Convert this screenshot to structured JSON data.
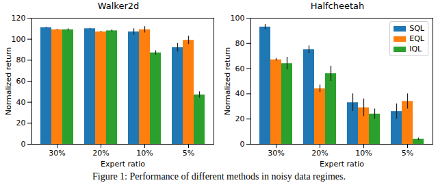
{
  "caption": "Figure 1: Performance of different methods in noisy data regimes.",
  "chart_data": [
    {
      "type": "bar",
      "title": "Walker2d",
      "x_label": "Expert ratio",
      "y_label": "Normalized return",
      "categories": [
        "30%",
        "20%",
        "10%",
        "5%"
      ],
      "series": [
        {
          "name": "SQL",
          "color": "#1f77b4",
          "values": [
            111,
            110,
            107,
            92
          ],
          "errors": [
            0.5,
            0.5,
            3,
            4
          ]
        },
        {
          "name": "EQL",
          "color": "#ff7f0e",
          "values": [
            109,
            107,
            109,
            99
          ],
          "errors": [
            0.5,
            0.5,
            3,
            4
          ]
        },
        {
          "name": "IQL",
          "color": "#2ca02c",
          "values": [
            109,
            108,
            87,
            47
          ],
          "errors": [
            1,
            1,
            2,
            3
          ]
        }
      ],
      "ylim": [
        0,
        120
      ],
      "yticks": [
        0,
        20,
        40,
        60,
        80,
        100,
        120
      ],
      "grid": false
    },
    {
      "type": "bar",
      "title": "Halfcheetah",
      "x_label": "Expert ratio",
      "y_label": "Normalized return",
      "categories": [
        "30%",
        "20%",
        "10%",
        "5%"
      ],
      "series": [
        {
          "name": "SQL",
          "color": "#1f77b4",
          "values": [
            93,
            75,
            33,
            26
          ],
          "errors": [
            2,
            3,
            7,
            6
          ]
        },
        {
          "name": "EQL",
          "color": "#ff7f0e",
          "values": [
            67,
            44,
            29,
            34
          ],
          "errors": [
            1,
            3,
            7,
            6
          ]
        },
        {
          "name": "IQL",
          "color": "#2ca02c",
          "values": [
            64,
            56,
            24,
            4
          ],
          "errors": [
            5,
            6,
            4,
            1
          ]
        }
      ],
      "ylim": [
        0,
        100
      ],
      "yticks": [
        0,
        20,
        40,
        60,
        80,
        100
      ],
      "grid": false,
      "legend": "upper right"
    }
  ]
}
